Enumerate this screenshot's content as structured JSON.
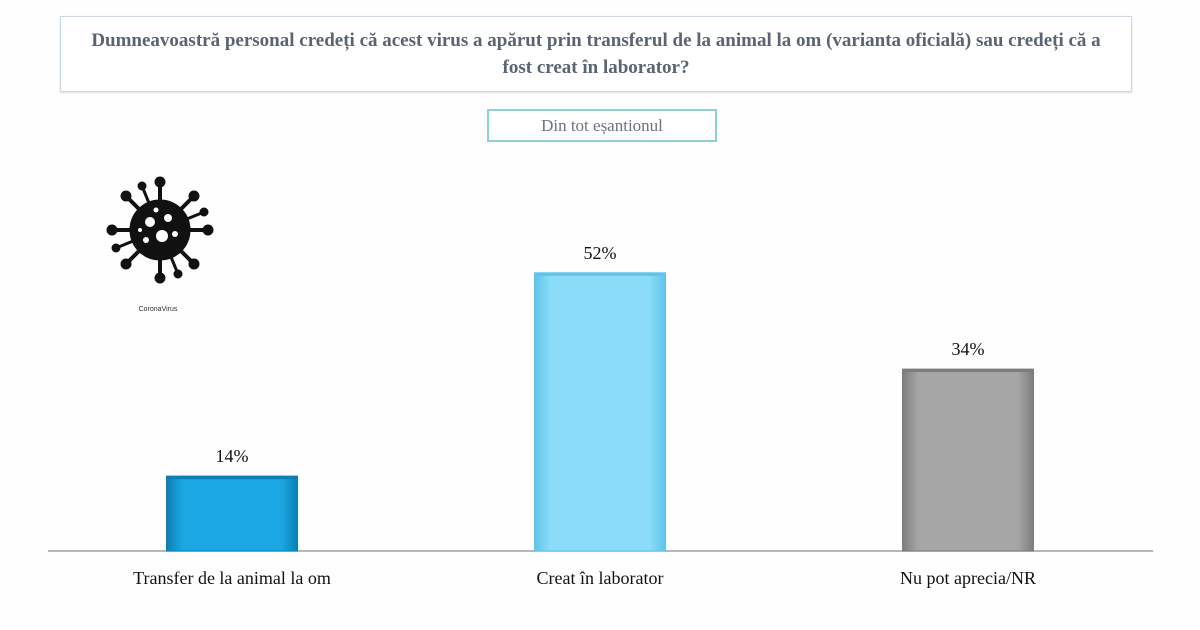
{
  "question": "Dumneavoastră personal credeți că acest virus a apărut prin transferul de la animal la om (varianta oficială) sau credeți că a fost creat în laborator?",
  "sample_label": "Din tot eșantionul",
  "icon": {
    "name": "coronavirus-icon",
    "caption": "CoronaVirus"
  },
  "chart_data": {
    "type": "bar",
    "categories": [
      "Transfer de la animal la om",
      "Creat în laborator",
      "Nu pot aprecia/NR"
    ],
    "values": [
      14,
      52,
      34
    ],
    "value_labels": [
      "14%",
      "52%",
      "34%"
    ],
    "unit": "%",
    "ylim": [
      0,
      60
    ],
    "colors": [
      "#1aa7e3",
      "#8adcf8",
      "#a6a6a6"
    ],
    "edge_colors": [
      "#0c7fb3",
      "#5fc4ea",
      "#7d7d7d"
    ],
    "grid": false,
    "legend": "none"
  }
}
